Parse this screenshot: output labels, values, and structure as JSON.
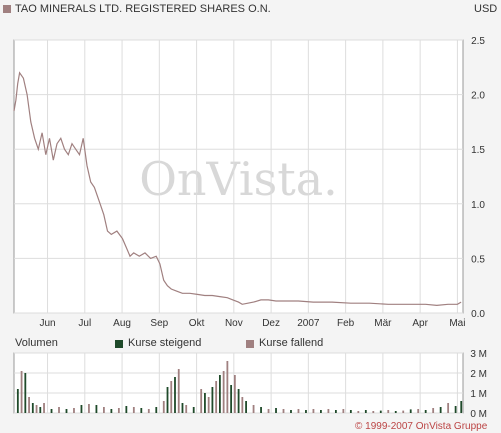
{
  "chart_data": [
    {
      "type": "line",
      "title": "TAO MINERALS LTD. REGISTERED SHARES O.N.",
      "currency": "USD",
      "watermark": "OnVista.",
      "y_ticks": [
        "0.0",
        "0.5",
        "1.0",
        "1.5",
        "2.0",
        "2.5"
      ],
      "ylim": [
        0,
        2.5
      ],
      "x_ticks": [
        "Jun",
        "Jul",
        "Aug",
        "Sep",
        "Okt",
        "Nov",
        "Dez",
        "2007",
        "Feb",
        "Mär",
        "Apr",
        "Mai"
      ],
      "grid": true,
      "series": [
        {
          "color": "#a08080",
          "points": [
            [
              0,
              1.85
            ],
            [
              0.05,
              1.95
            ],
            [
              0.1,
              2.1
            ],
            [
              0.15,
              2.2
            ],
            [
              0.25,
              2.15
            ],
            [
              0.35,
              2.0
            ],
            [
              0.45,
              1.75
            ],
            [
              0.55,
              1.6
            ],
            [
              0.65,
              1.5
            ],
            [
              0.75,
              1.65
            ],
            [
              0.85,
              1.45
            ],
            [
              0.95,
              1.6
            ],
            [
              1.05,
              1.4
            ],
            [
              1.15,
              1.55
            ],
            [
              1.25,
              1.6
            ],
            [
              1.35,
              1.5
            ],
            [
              1.45,
              1.45
            ],
            [
              1.55,
              1.55
            ],
            [
              1.65,
              1.5
            ],
            [
              1.75,
              1.45
            ],
            [
              1.85,
              1.6
            ],
            [
              1.95,
              1.35
            ],
            [
              2.05,
              1.2
            ],
            [
              2.15,
              1.15
            ],
            [
              2.3,
              1.0
            ],
            [
              2.4,
              0.9
            ],
            [
              2.5,
              0.75
            ],
            [
              2.6,
              0.72
            ],
            [
              2.75,
              0.75
            ],
            [
              2.9,
              0.68
            ],
            [
              3.0,
              0.6
            ],
            [
              3.1,
              0.52
            ],
            [
              3.2,
              0.55
            ],
            [
              3.35,
              0.52
            ],
            [
              3.5,
              0.55
            ],
            [
              3.65,
              0.5
            ],
            [
              3.8,
              0.52
            ],
            [
              3.9,
              0.45
            ],
            [
              4.0,
              0.3
            ],
            [
              4.1,
              0.25
            ],
            [
              4.2,
              0.22
            ],
            [
              4.35,
              0.2
            ],
            [
              4.5,
              0.18
            ],
            [
              4.7,
              0.18
            ],
            [
              4.9,
              0.17
            ],
            [
              5.1,
              0.16
            ],
            [
              5.3,
              0.16
            ],
            [
              5.5,
              0.15
            ],
            [
              5.7,
              0.14
            ],
            [
              5.85,
              0.12
            ],
            [
              6.0,
              0.1
            ],
            [
              6.1,
              0.08
            ],
            [
              6.25,
              0.09
            ],
            [
              6.4,
              0.1
            ],
            [
              6.6,
              0.12
            ],
            [
              6.8,
              0.12
            ],
            [
              7.0,
              0.11
            ],
            [
              7.3,
              0.11
            ],
            [
              7.6,
              0.11
            ],
            [
              8.0,
              0.1
            ],
            [
              8.5,
              0.1
            ],
            [
              9.0,
              0.09
            ],
            [
              9.5,
              0.09
            ],
            [
              10.0,
              0.08
            ],
            [
              10.5,
              0.08
            ],
            [
              11.0,
              0.08
            ],
            [
              11.3,
              0.07
            ],
            [
              11.6,
              0.08
            ],
            [
              11.85,
              0.08
            ],
            [
              11.95,
              0.1
            ]
          ]
        }
      ]
    },
    {
      "type": "bar",
      "title": "Volumen",
      "legend": [
        {
          "name": "Kurse steigend",
          "color": "#1f4a2a"
        },
        {
          "name": "Kurse fallend",
          "color": "#a08080"
        }
      ],
      "y_ticks": [
        "0 M",
        "1 M",
        "2 M",
        "3 M"
      ],
      "ylim": [
        0,
        3
      ],
      "bars": [
        [
          0.1,
          1.2,
          "up"
        ],
        [
          0.2,
          2.1,
          "down"
        ],
        [
          0.3,
          2.0,
          "up"
        ],
        [
          0.4,
          0.8,
          "down"
        ],
        [
          0.5,
          0.5,
          "up"
        ],
        [
          0.6,
          0.4,
          "down"
        ],
        [
          0.7,
          0.3,
          "up"
        ],
        [
          0.8,
          0.5,
          "down"
        ],
        [
          1.0,
          0.2,
          "up"
        ],
        [
          1.2,
          0.3,
          "down"
        ],
        [
          1.4,
          0.2,
          "up"
        ],
        [
          1.6,
          0.25,
          "down"
        ],
        [
          1.8,
          0.4,
          "up"
        ],
        [
          2.0,
          0.45,
          "down"
        ],
        [
          2.2,
          0.4,
          "up"
        ],
        [
          2.4,
          0.3,
          "down"
        ],
        [
          2.6,
          0.2,
          "up"
        ],
        [
          2.8,
          0.25,
          "down"
        ],
        [
          3.0,
          0.35,
          "up"
        ],
        [
          3.2,
          0.3,
          "down"
        ],
        [
          3.4,
          0.25,
          "up"
        ],
        [
          3.6,
          0.2,
          "down"
        ],
        [
          3.8,
          0.3,
          "up"
        ],
        [
          4.0,
          0.6,
          "down"
        ],
        [
          4.1,
          1.3,
          "up"
        ],
        [
          4.2,
          1.6,
          "down"
        ],
        [
          4.3,
          1.8,
          "up"
        ],
        [
          4.4,
          2.2,
          "down"
        ],
        [
          4.5,
          0.5,
          "up"
        ],
        [
          4.6,
          0.4,
          "down"
        ],
        [
          4.8,
          0.3,
          "up"
        ],
        [
          5.0,
          1.2,
          "down"
        ],
        [
          5.1,
          1.0,
          "up"
        ],
        [
          5.2,
          0.8,
          "down"
        ],
        [
          5.3,
          1.3,
          "up"
        ],
        [
          5.4,
          1.6,
          "down"
        ],
        [
          5.5,
          1.9,
          "up"
        ],
        [
          5.6,
          2.1,
          "down"
        ],
        [
          5.7,
          2.6,
          "down"
        ],
        [
          5.8,
          1.4,
          "up"
        ],
        [
          5.9,
          1.9,
          "down"
        ],
        [
          6.0,
          1.2,
          "up"
        ],
        [
          6.1,
          0.8,
          "down"
        ],
        [
          6.2,
          0.6,
          "up"
        ],
        [
          6.4,
          0.4,
          "down"
        ],
        [
          6.6,
          0.3,
          "up"
        ],
        [
          6.8,
          0.2,
          "down"
        ],
        [
          7.0,
          0.25,
          "up"
        ],
        [
          7.2,
          0.2,
          "down"
        ],
        [
          7.4,
          0.15,
          "up"
        ],
        [
          7.6,
          0.2,
          "down"
        ],
        [
          7.8,
          0.15,
          "up"
        ],
        [
          8.0,
          0.2,
          "down"
        ],
        [
          8.2,
          0.15,
          "up"
        ],
        [
          8.4,
          0.2,
          "down"
        ],
        [
          8.6,
          0.15,
          "up"
        ],
        [
          8.8,
          0.2,
          "down"
        ],
        [
          9.0,
          0.15,
          "up"
        ],
        [
          9.2,
          0.1,
          "down"
        ],
        [
          9.4,
          0.15,
          "up"
        ],
        [
          9.6,
          0.1,
          "down"
        ],
        [
          9.8,
          0.12,
          "up"
        ],
        [
          10.0,
          0.15,
          "down"
        ],
        [
          10.2,
          0.1,
          "up"
        ],
        [
          10.4,
          0.12,
          "down"
        ],
        [
          10.6,
          0.18,
          "up"
        ],
        [
          10.8,
          0.2,
          "down"
        ],
        [
          11.0,
          0.15,
          "up"
        ],
        [
          11.2,
          0.25,
          "down"
        ],
        [
          11.4,
          0.3,
          "up"
        ],
        [
          11.6,
          0.5,
          "down"
        ],
        [
          11.8,
          0.35,
          "up"
        ],
        [
          11.95,
          0.6,
          "up"
        ]
      ]
    }
  ],
  "copyright": "© 1999-2007 OnVista Gruppe"
}
